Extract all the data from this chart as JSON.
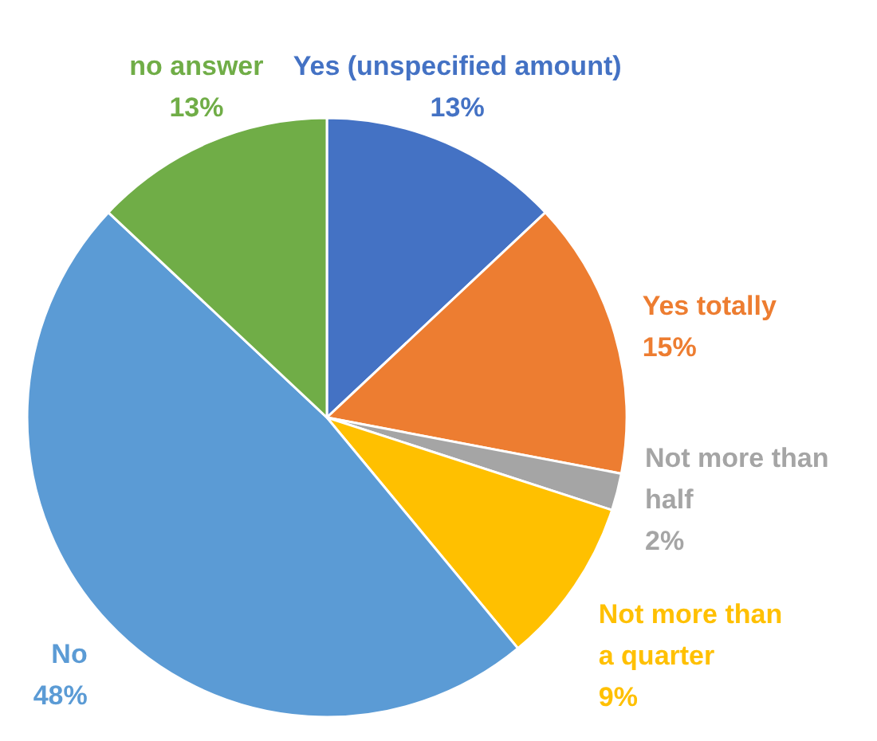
{
  "chart_data": {
    "type": "pie",
    "categories": [
      "Yes (unspecified amount)",
      "Yes totally",
      "Not more than half",
      "Not more than a quarter",
      "No",
      "no answer"
    ],
    "values": [
      13,
      15,
      2,
      9,
      48,
      13
    ],
    "value_labels": [
      "13%",
      "15%",
      "2%",
      "9%",
      "48%",
      "13%"
    ],
    "colors": [
      "#4472c4",
      "#ed7d31",
      "#a5a5a5",
      "#ffc000",
      "#5b9bd5",
      "#70ad47"
    ]
  }
}
